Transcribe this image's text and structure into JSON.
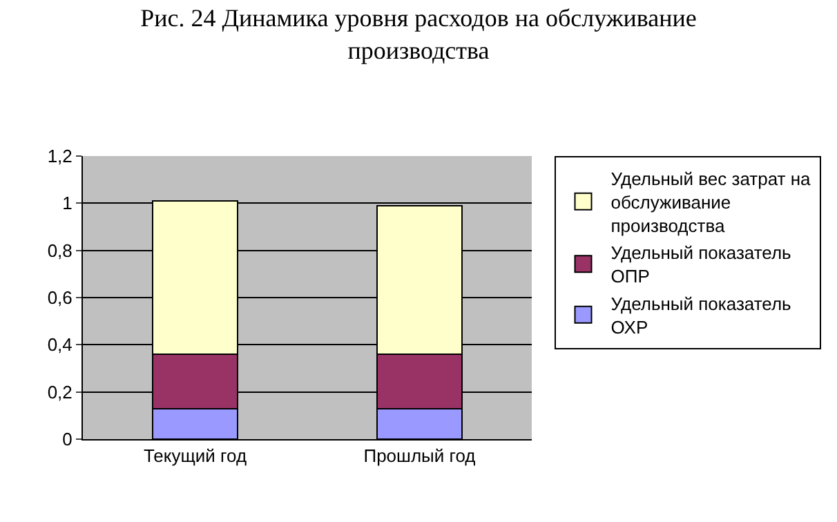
{
  "chart_data": {
    "type": "bar",
    "title": "Рис. 24 Динамика уровня расходов на обслуживание производства",
    "categories": [
      "Текущий год",
      "Прошлый год"
    ],
    "stacked": true,
    "series": [
      {
        "name": "Удельный показатель ОХР",
        "color": "#9999ff",
        "values": [
          0.13,
          0.13
        ]
      },
      {
        "name": "Удельный показатель ОПР",
        "color": "#993366",
        "values": [
          0.23,
          0.23
        ]
      },
      {
        "name": "Удельный вес затрат на обслуживание производства",
        "color": "#ffffcc",
        "values": [
          0.65,
          0.63
        ]
      }
    ],
    "ylim": [
      0,
      1.2
    ],
    "yticks": [
      {
        "value": 0,
        "label": "0"
      },
      {
        "value": 0.2,
        "label": "0,2"
      },
      {
        "value": 0.4,
        "label": "0,4"
      },
      {
        "value": 0.6,
        "label": "0,6"
      },
      {
        "value": 0.8,
        "label": "0,8"
      },
      {
        "value": 1,
        "label": "1"
      },
      {
        "value": 1.2,
        "label": "1,2"
      }
    ],
    "grid": "y",
    "legend": "right"
  }
}
